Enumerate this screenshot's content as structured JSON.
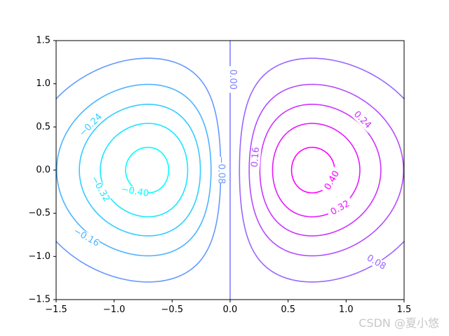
{
  "chart_data": {
    "type": "contour",
    "title": "",
    "xlabel": "",
    "ylabel": "",
    "xlim": [
      -1.5,
      1.5
    ],
    "ylim": [
      -1.5,
      1.5
    ],
    "xticks": [
      -1.5,
      -1.0,
      -0.5,
      0.0,
      0.5,
      1.0,
      1.5
    ],
    "yticks": [
      -1.5,
      -1.0,
      -0.5,
      0.0,
      0.5,
      1.0,
      1.5
    ],
    "xtick_labels": [
      "−1.5",
      "−1.0",
      "−0.5",
      "0.0",
      "0.5",
      "1.0",
      "1.5"
    ],
    "ytick_labels": [
      "−1.5",
      "−1.0",
      "−0.5",
      "0.0",
      "0.5",
      "1.0",
      "1.5"
    ],
    "grid": false,
    "colormap": "cool",
    "levels": [
      -0.4,
      -0.32,
      -0.24,
      -0.16,
      -0.08,
      0.0,
      0.08,
      0.16,
      0.24,
      0.32,
      0.4
    ],
    "contour_labels": [
      {
        "text": "−0.40",
        "level": -0.4,
        "x": -0.82,
        "y": -0.25,
        "rotation": 10
      },
      {
        "text": "−0.32",
        "level": -0.32,
        "x": -1.12,
        "y": -0.22,
        "rotation": 60
      },
      {
        "text": "−0.24",
        "level": -0.24,
        "x": -1.2,
        "y": 0.52,
        "rotation": -45
      },
      {
        "text": "−0.16",
        "level": -0.16,
        "x": -1.24,
        "y": -0.78,
        "rotation": 30
      },
      {
        "text": "−0.08",
        "level": -0.08,
        "x": -0.08,
        "y": 0.0,
        "rotation": 90
      },
      {
        "text": "0.00",
        "level": 0.0,
        "x": 0.02,
        "y": 1.05,
        "rotation": 90
      },
      {
        "text": "0.08",
        "level": 0.08,
        "x": 1.26,
        "y": -1.07,
        "rotation": 30
      },
      {
        "text": "0.16",
        "level": 0.16,
        "x": 0.22,
        "y": 0.15,
        "rotation": -85
      },
      {
        "text": "0.24",
        "level": 0.24,
        "x": 1.14,
        "y": 0.58,
        "rotation": 45
      },
      {
        "text": "0.32",
        "level": 0.32,
        "x": 0.95,
        "y": -0.44,
        "rotation": -30
      },
      {
        "text": "0.40",
        "level": 0.4,
        "x": 0.88,
        "y": -0.12,
        "rotation": -60
      }
    ]
  },
  "watermark": {
    "text": "CSDN @夏小悠"
  }
}
